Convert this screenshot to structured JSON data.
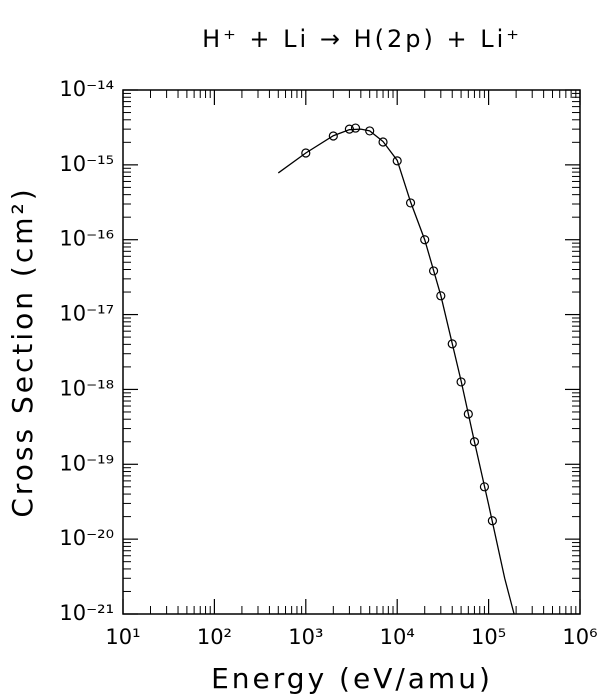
{
  "chart_data": {
    "type": "scatter",
    "title": "H⁺ + Li → H(2p) + Li⁺",
    "x_label": "Energy (eV/amu)",
    "y_label": "Cross Section (cm²)",
    "xscale": "log",
    "yscale": "log",
    "color": "#000000",
    "xlim": [
      10,
      1000000
    ],
    "ylim": [
      1e-21,
      1e-14
    ],
    "xticks": [
      {
        "value": 10,
        "label": "10¹"
      },
      {
        "value": 100,
        "label": "10²"
      },
      {
        "value": 1000,
        "label": "10³"
      },
      {
        "value": 10000,
        "label": "10⁴"
      },
      {
        "value": 100000,
        "label": "10⁵"
      },
      {
        "value": 1000000,
        "label": "10⁶"
      }
    ],
    "yticks": [
      {
        "value": 1e-21,
        "label": "10⁻²¹"
      },
      {
        "value": 1e-20,
        "label": "10⁻²⁰"
      },
      {
        "value": 1e-19,
        "label": "10⁻¹⁹"
      },
      {
        "value": 1e-18,
        "label": "10⁻¹⁸"
      },
      {
        "value": 1e-17,
        "label": "10⁻¹⁷"
      },
      {
        "value": 1e-16,
        "label": "10⁻¹⁶"
      },
      {
        "value": 1e-15,
        "label": "10⁻¹⁵"
      },
      {
        "value": 1e-14,
        "label": "10⁻¹⁴"
      }
    ],
    "series": [
      {
        "type": "line",
        "color": "#000000",
        "x": [
          500,
          1000,
          2000,
          3000,
          4000,
          5000,
          7000,
          10000,
          14000,
          20000,
          30000,
          50000,
          70000,
          100000,
          150000,
          190000
        ],
        "values": [
          7.8e-16,
          1.44e-15,
          2.45e-15,
          2.95e-15,
          3e-15,
          2.85e-15,
          2.05e-15,
          1.15e-15,
          3.2e-16,
          1e-16,
          1.8e-17,
          1.3e-18,
          2e-19,
          2.9e-20,
          3e-21,
          1e-21
        ]
      },
      {
        "type": "scatter",
        "marker": "circle",
        "color": "#000000",
        "x": [
          1000,
          2000,
          3000,
          3500,
          5000,
          7000,
          10000,
          14000,
          20000,
          25000,
          30000,
          40000,
          50000,
          60000,
          70000,
          90000,
          110000
        ],
        "values": [
          1.44e-15,
          2.43e-15,
          3e-15,
          3.1e-15,
          2.84e-15,
          2.02e-15,
          1.13e-15,
          3.1e-16,
          1e-16,
          3.83e-17,
          1.78e-17,
          4.06e-18,
          1.26e-18,
          4.7e-19,
          2e-19,
          5e-20,
          1.76e-20
        ]
      }
    ]
  }
}
